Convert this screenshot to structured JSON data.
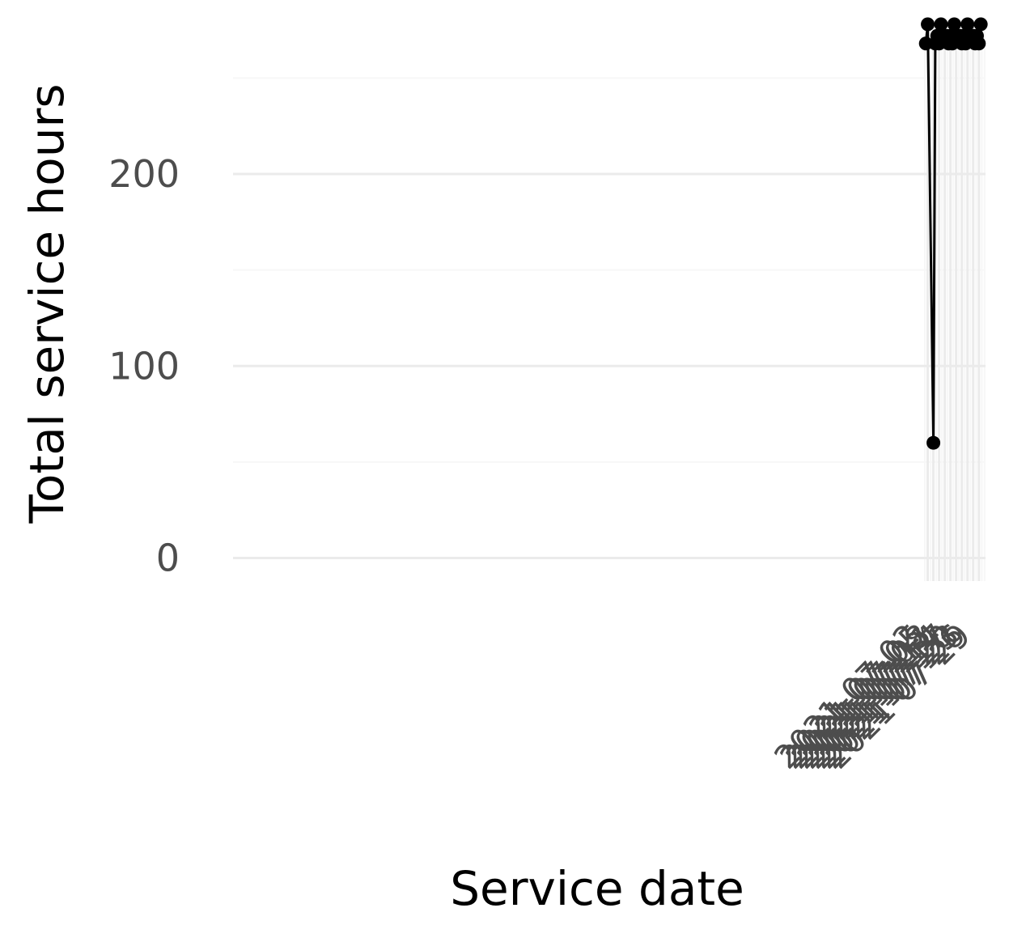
{
  "chart_data": {
    "type": "line",
    "xlabel": "Service date",
    "ylabel": "Total service hours",
    "ylim": [
      -12,
      278
    ],
    "yticks": [
      0,
      100,
      200
    ],
    "xticks": [
      "2021-07-02",
      "2021-07-05",
      "2021-07-08",
      "2021-07-11",
      "2021-07-14",
      "2021-07-17",
      "2021-07-20",
      "2021-07-23",
      "2021-07-26",
      "2021-07-29"
    ],
    "xlim": [
      "2020-06-30T12:00",
      "2021-08-01T12:00"
    ],
    "grid": true,
    "legend": "none",
    "colors": {
      "line": "#000000",
      "grid_major": "#ebebeb",
      "grid_minor": "#f7f7f7"
    },
    "series": [
      {
        "x": [
          "2021-07-01",
          "2021-07-02",
          "2021-07-05",
          "2021-07-06",
          "2021-07-07",
          "2021-07-08",
          "2021-07-09",
          "2021-07-12",
          "2021-07-13",
          "2021-07-14",
          "2021-07-15",
          "2021-07-16",
          "2021-07-19",
          "2021-07-20",
          "2021-07-21",
          "2021-07-22",
          "2021-07-23",
          "2021-07-26",
          "2021-07-27",
          "2021-07-28",
          "2021-07-29",
          "2021-07-30"
        ],
        "y": [
          268,
          278,
          60,
          268,
          272,
          268,
          278,
          272,
          268,
          272,
          268,
          278,
          272,
          268,
          272,
          268,
          278,
          272,
          268,
          272,
          268,
          278
        ]
      }
    ]
  }
}
